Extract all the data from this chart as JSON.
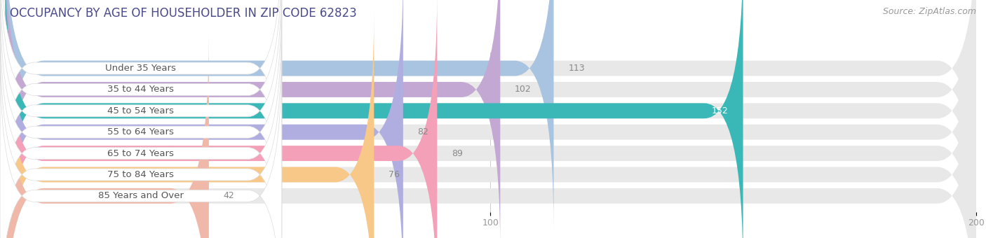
{
  "title": "OCCUPANCY BY AGE OF HOUSEHOLDER IN ZIP CODE 62823",
  "source": "Source: ZipAtlas.com",
  "categories": [
    "Under 35 Years",
    "35 to 44 Years",
    "45 to 54 Years",
    "55 to 64 Years",
    "65 to 74 Years",
    "75 to 84 Years",
    "85 Years and Over"
  ],
  "values": [
    113,
    102,
    152,
    82,
    89,
    76,
    42
  ],
  "bar_colors": [
    "#a8c4e0",
    "#c4a8d4",
    "#3ab8b8",
    "#b0aee0",
    "#f4a0b8",
    "#f8c888",
    "#f0b8a8"
  ],
  "xlim": [
    -10,
    210
  ],
  "data_xlim": [
    0,
    200
  ],
  "xticks": [
    0,
    100,
    200
  ],
  "bar_height": 0.72,
  "background_color": "#ffffff",
  "bar_bg_color": "#e8e8e8",
  "value_label_color_inside": "#ffffff",
  "value_label_color_outside": "#888888",
  "title_fontsize": 12,
  "source_fontsize": 9,
  "label_fontsize": 9.5,
  "tick_fontsize": 9,
  "value_fontsize": 9
}
